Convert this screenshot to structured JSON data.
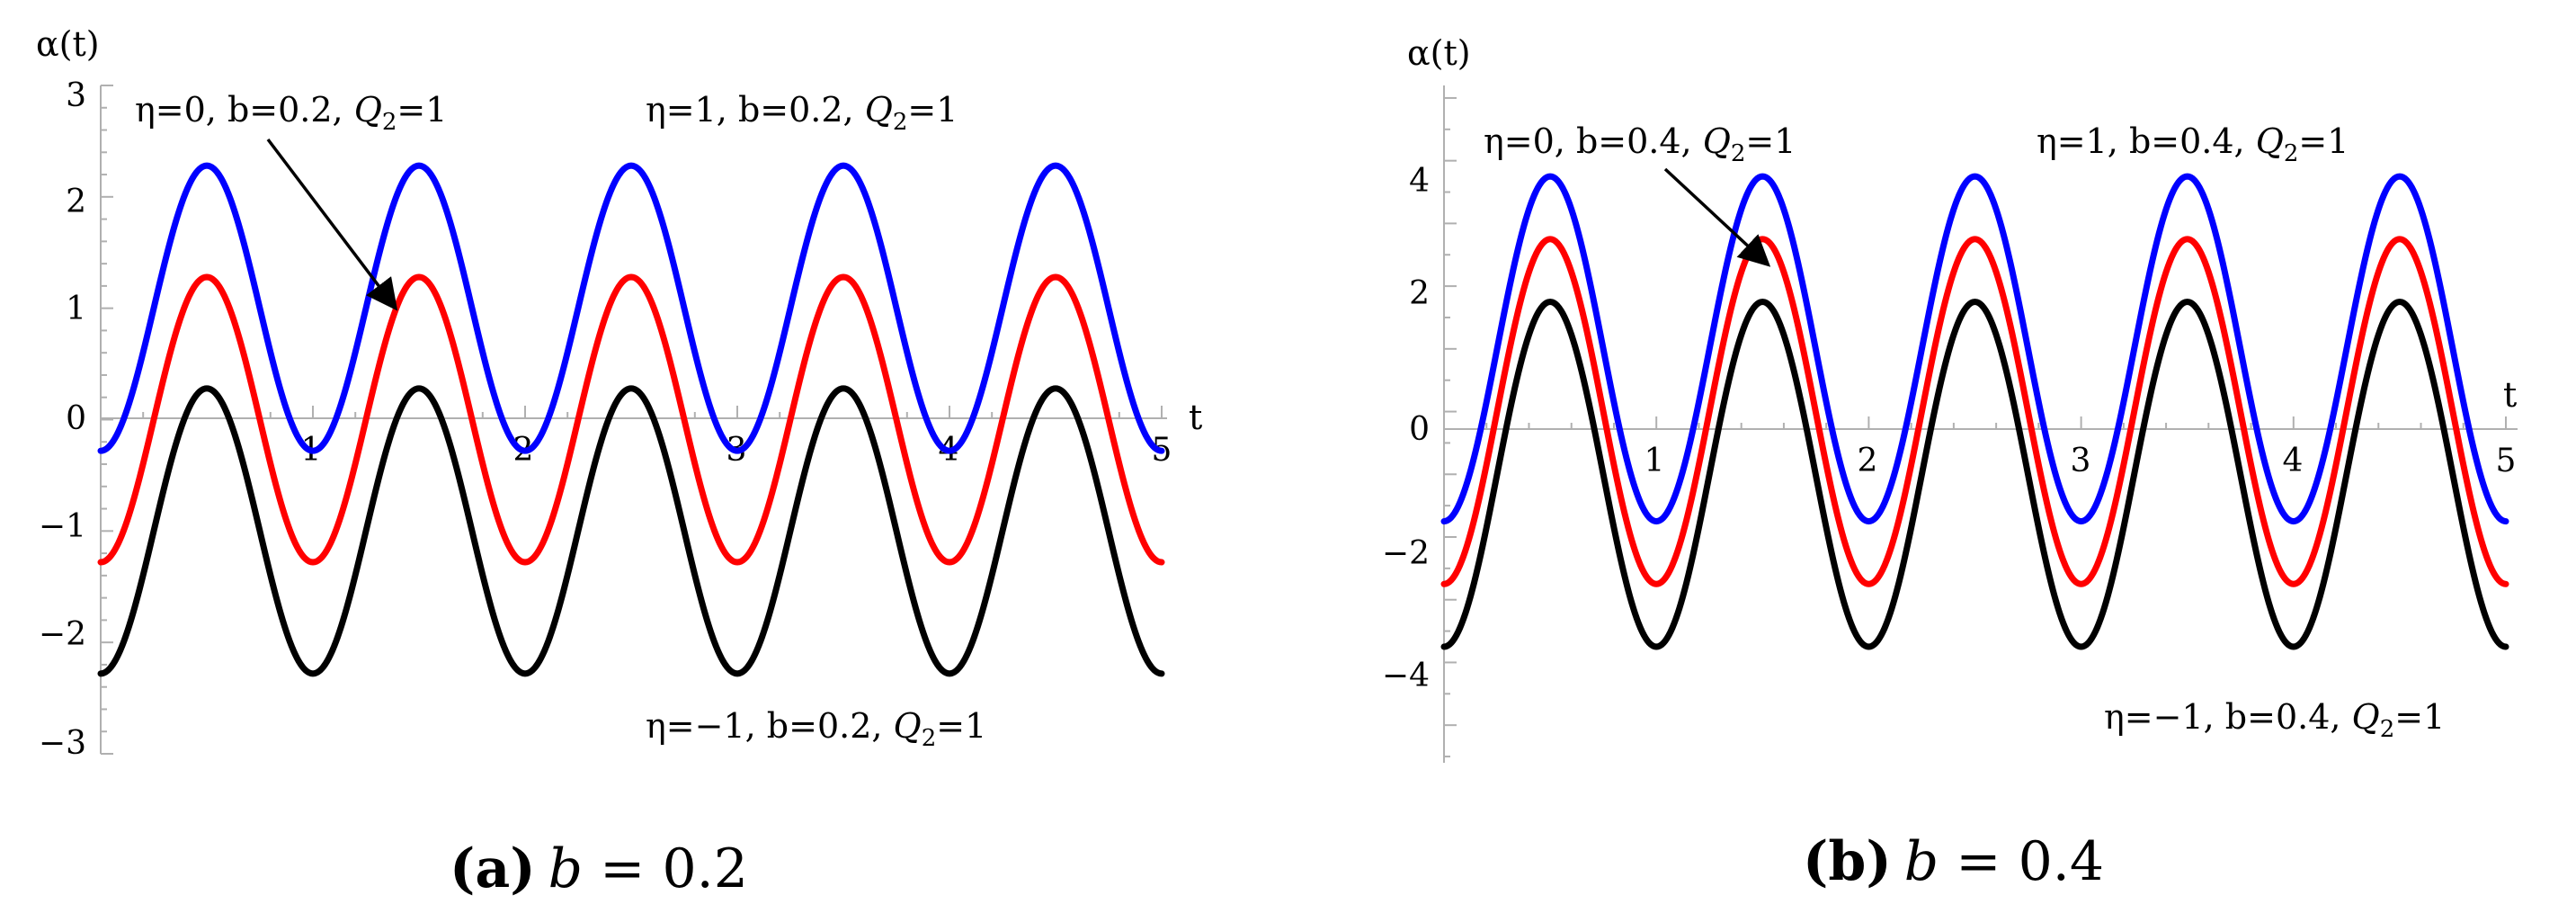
{
  "chart_data": [
    {
      "type": "line",
      "panel": "a",
      "caption": {
        "label": "(a)",
        "text": "b = 0.2"
      },
      "xlabel": "t",
      "ylabel": "α(t)",
      "xlim": [
        0,
        5
      ],
      "ylim": [
        -3,
        3
      ],
      "xticks": [
        "1",
        "2",
        "3",
        "4",
        "5"
      ],
      "yticks": [
        "3",
        "2",
        "1",
        "0",
        "−1",
        "−2",
        "−3"
      ],
      "b": 0.2,
      "x": [
        0,
        0.5,
        1,
        1.5,
        2,
        2.5,
        3,
        3.5,
        4,
        4.5,
        5
      ],
      "series": [
        {
          "name": "η=1, b=0.2, Q2=1",
          "color": "#0000ff",
          "values": [
            -0.28,
            2.28,
            -0.28,
            2.28,
            -0.28,
            2.28,
            -0.28,
            2.28,
            -0.28,
            2.28,
            -0.28
          ]
        },
        {
          "name": "η=0, b=0.2, Q2=1",
          "color": "#ff0000",
          "values": [
            -1.28,
            1.28,
            -1.28,
            1.28,
            -1.28,
            1.28,
            -1.28,
            1.28,
            -1.28,
            1.28,
            -1.28
          ]
        },
        {
          "name": "η=−1, b=0.2, Q2=1",
          "color": "#000000",
          "values": [
            -2.28,
            0.28,
            -2.28,
            0.28,
            -2.28,
            0.28,
            -2.28,
            0.28,
            -2.28,
            0.28,
            -2.28
          ]
        }
      ],
      "annotations": {
        "eta0": {
          "pre": "η=0, b=0.2, ",
          "q": "Q",
          "sub": "2",
          "post": "=1"
        },
        "eta1": {
          "pre": "η=1, b=0.2, ",
          "q": "Q",
          "sub": "2",
          "post": "=1"
        },
        "etam1": {
          "pre": "η=−1, b=0.2, ",
          "q": "Q",
          "sub": "2",
          "post": "=1"
        }
      },
      "arrow": {
        "from_label": "η=0, b=0.2, Q2=1",
        "points_to": [
          1.42,
          1.0
        ]
      }
    },
    {
      "type": "line",
      "panel": "b",
      "caption": {
        "label": "(b)",
        "text": "b = 0.4"
      },
      "xlabel": "t",
      "ylabel": "α(t)",
      "xlim": [
        0,
        5
      ],
      "ylim": [
        -5.6,
        5.2
      ],
      "xticks": [
        "1",
        "2",
        "3",
        "4",
        "5"
      ],
      "yticks": [
        "4",
        "2",
        "0",
        "−2",
        "−4"
      ],
      "b": 0.4,
      "x": [
        0,
        0.5,
        1,
        1.5,
        2,
        2.5,
        3,
        3.5,
        4,
        4.5,
        5
      ],
      "series": [
        {
          "name": "η=1, b=0.4, Q2=1",
          "color": "#0000ff",
          "values": [
            -1.5,
            3.75,
            -1.75,
            3.75,
            -1.75,
            3.75,
            -1.75,
            3.75,
            -1.75,
            3.75,
            -1.5
          ]
        },
        {
          "name": "η=0, b=0.4, Q2=1",
          "color": "#ff0000",
          "values": [
            -2.5,
            2.75,
            -2.75,
            2.75,
            -2.75,
            2.75,
            -2.75,
            2.75,
            -2.75,
            2.75,
            -2.5
          ]
        },
        {
          "name": "η=−1, b=0.4, Q2=1",
          "color": "#000000",
          "values": [
            -3.5,
            1.75,
            -3.75,
            1.75,
            -3.75,
            1.75,
            -3.75,
            1.75,
            -3.75,
            1.75,
            -3.5
          ]
        }
      ],
      "annotations": {
        "eta0": {
          "pre": "η=0, b=0.4, ",
          "q": "Q",
          "sub": "2",
          "post": "=1"
        },
        "eta1": {
          "pre": "η=1, b=0.4, ",
          "q": "Q",
          "sub": "2",
          "post": "=1"
        },
        "etam1": {
          "pre": "η=−1, b=0.4, ",
          "q": "Q",
          "sub": "2",
          "post": "=1"
        }
      },
      "arrow": {
        "from_label": "η=0, b=0.4, Q2=1",
        "points_to": [
          1.5,
          2.75
        ]
      }
    }
  ]
}
